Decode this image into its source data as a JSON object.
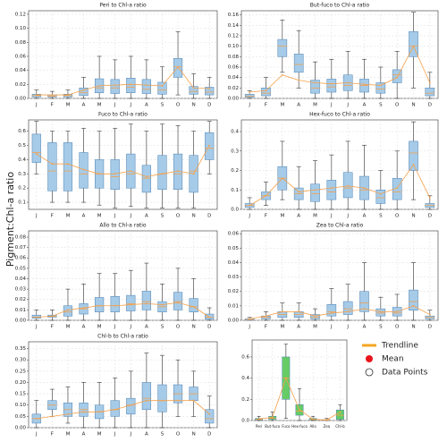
{
  "ylabel": "Pigment:Chl-a ratio",
  "chart_data": [
    {
      "type": "box",
      "title": "Peri to Chl-a ratio",
      "categories": [
        "J",
        "F",
        "M",
        "A",
        "M",
        "J",
        "J",
        "A",
        "S",
        "O",
        "N",
        "D"
      ],
      "whislo": [
        0,
        0,
        0,
        0,
        0,
        0,
        0,
        0,
        0,
        0.005,
        0,
        0
      ],
      "q1": [
        0.002,
        0.002,
        0.002,
        0.004,
        0.008,
        0.007,
        0.008,
        0.007,
        0.006,
        0.03,
        0.006,
        0.005
      ],
      "median": [
        0.004,
        0.003,
        0.004,
        0.008,
        0.015,
        0.015,
        0.016,
        0.013,
        0.012,
        0.045,
        0.01,
        0.009
      ],
      "q3": [
        0.006,
        0.005,
        0.006,
        0.015,
        0.028,
        0.027,
        0.029,
        0.027,
        0.023,
        0.057,
        0.017,
        0.016
      ],
      "whishi": [
        0.012,
        0.01,
        0.012,
        0.03,
        0.06,
        0.055,
        0.06,
        0.055,
        0.045,
        0.095,
        0.035,
        0.03
      ],
      "mean": [
        0.005,
        0.005,
        0.005,
        0.012,
        0.018,
        0.019,
        0.02,
        0.019,
        0.018,
        0.045,
        0.015,
        0.014
      ],
      "ylim": [
        0,
        0.125
      ],
      "yticks": [
        {
          "value": 0,
          "label": "0.00"
        },
        0.02,
        0.04,
        0.06,
        0.08,
        {
          "value": 0.1,
          "label": "0.10"
        },
        0.12
      ],
      "color": "#a6cbe8",
      "trend_color": "#f5a04a",
      "grid": true
    },
    {
      "type": "box",
      "title": "But-fuco to Chl-a ratio",
      "categories": [
        "J",
        "F",
        "M",
        "A",
        "M",
        "J",
        "J",
        "A",
        "S",
        "O",
        "N",
        "D"
      ],
      "whislo": [
        0,
        0,
        0.05,
        0.02,
        0,
        0,
        0,
        0,
        0,
        0,
        0.02,
        0
      ],
      "q1": [
        0.002,
        0.005,
        0.08,
        0.05,
        0.01,
        0.012,
        0.015,
        0.012,
        0.01,
        0.03,
        0.08,
        0.005
      ],
      "median": [
        0.004,
        0.01,
        0.1,
        0.065,
        0.02,
        0.022,
        0.025,
        0.025,
        0.018,
        0.045,
        0.1,
        0.01
      ],
      "q3": [
        0.008,
        0.02,
        0.113,
        0.085,
        0.035,
        0.037,
        0.045,
        0.037,
        0.03,
        0.055,
        0.128,
        0.02
      ],
      "whishi": [
        0.015,
        0.04,
        0.15,
        0.13,
        0.07,
        0.075,
        0.09,
        0.075,
        0.06,
        0.09,
        0.165,
        0.05
      ],
      "mean": [
        0.012,
        0.015,
        0.045,
        0.035,
        0.03,
        0.028,
        0.03,
        0.027,
        0.025,
        0.04,
        0.1,
        0.03
      ],
      "ylim": [
        0,
        0.168
      ],
      "yticks": [
        {
          "value": 0,
          "label": "0.00"
        },
        0.02,
        0.04,
        0.06,
        0.08,
        {
          "value": 0.1,
          "label": "0.10"
        },
        0.12,
        0.14,
        0.16
      ],
      "color": "#a6cbe8",
      "trend_color": "#f5a04a",
      "grid": true
    },
    {
      "type": "box",
      "title": "Fuco to Chl-a ratio",
      "categories": [
        "J",
        "F",
        "M",
        "A",
        "M",
        "J",
        "J",
        "A",
        "S",
        "O",
        "N",
        "D"
      ],
      "whislo": [
        0.3,
        0.1,
        0.1,
        0.1,
        0.08,
        0.06,
        0.07,
        0.06,
        0.06,
        0.06,
        0.06,
        0.3
      ],
      "q1": [
        0.38,
        0.18,
        0.18,
        0.2,
        0.2,
        0.19,
        0.2,
        0.17,
        0.19,
        0.19,
        0.17,
        0.4
      ],
      "median": [
        0.45,
        0.32,
        0.32,
        0.3,
        0.3,
        0.28,
        0.3,
        0.27,
        0.3,
        0.3,
        0.32,
        0.48
      ],
      "q3": [
        0.58,
        0.52,
        0.52,
        0.45,
        0.4,
        0.4,
        0.44,
        0.36,
        0.43,
        0.44,
        0.43,
        0.59
      ],
      "whishi": [
        0.67,
        0.6,
        0.6,
        0.62,
        0.6,
        0.62,
        0.65,
        0.6,
        0.65,
        0.64,
        0.6,
        0.67
      ],
      "mean": [
        0.44,
        0.37,
        0.37,
        0.33,
        0.3,
        0.3,
        0.32,
        0.28,
        0.3,
        0.32,
        0.3,
        0.5
      ],
      "ylim": [
        0.05,
        0.68
      ],
      "yticks": [
        0.1,
        0.2,
        0.3,
        0.4,
        0.5,
        0.6
      ],
      "color": "#a6cbe8",
      "trend_color": "#f5a04a",
      "grid": true
    },
    {
      "type": "box",
      "title": "Hex-fuco to Chl-a ratio",
      "categories": [
        "J",
        "F",
        "M",
        "A",
        "M",
        "J",
        "J",
        "A",
        "S",
        "O",
        "N",
        "D"
      ],
      "whislo": [
        0,
        0.02,
        0.05,
        0,
        0,
        0,
        0,
        0,
        0,
        0,
        0.05,
        0
      ],
      "q1": [
        0.01,
        0.05,
        0.1,
        0.05,
        0.04,
        0.05,
        0.06,
        0.05,
        0.03,
        0.05,
        0.2,
        0.01
      ],
      "median": [
        0.02,
        0.07,
        0.16,
        0.08,
        0.08,
        0.09,
        0.11,
        0.1,
        0.06,
        0.09,
        0.29,
        0.02
      ],
      "q3": [
        0.03,
        0.09,
        0.22,
        0.11,
        0.13,
        0.15,
        0.19,
        0.17,
        0.1,
        0.16,
        0.35,
        0.03
      ],
      "whishi": [
        0.06,
        0.14,
        0.35,
        0.22,
        0.25,
        0.28,
        0.35,
        0.33,
        0.2,
        0.3,
        0.45,
        0.07
      ],
      "mean": [
        0.02,
        0.07,
        0.16,
        0.09,
        0.1,
        0.11,
        0.12,
        0.11,
        0.08,
        0.11,
        0.23,
        0.06
      ],
      "ylim": [
        0,
        0.46
      ],
      "yticks": [
        {
          "value": 0,
          "label": "0.0"
        },
        0.1,
        0.2,
        0.3,
        0.4
      ],
      "color": "#a6cbe8",
      "trend_color": "#f5a04a",
      "grid": true
    },
    {
      "type": "box",
      "title": "Allo to Chl-a ratio",
      "categories": [
        "J",
        "F",
        "M",
        "A",
        "M",
        "J",
        "J",
        "A",
        "S",
        "O",
        "N",
        "D"
      ],
      "whislo": [
        0,
        0,
        0,
        0,
        0,
        0,
        0,
        0,
        0,
        0,
        0,
        0
      ],
      "q1": [
        0.002,
        0.003,
        0.004,
        0.006,
        0.008,
        0.008,
        0.009,
        0.01,
        0.008,
        0.01,
        0.008,
        0.001
      ],
      "median": [
        0.003,
        0.004,
        0.008,
        0.011,
        0.014,
        0.014,
        0.016,
        0.018,
        0.013,
        0.018,
        0.013,
        0.003
      ],
      "q3": [
        0.005,
        0.005,
        0.014,
        0.016,
        0.022,
        0.023,
        0.024,
        0.028,
        0.018,
        0.027,
        0.021,
        0.006
      ],
      "whishi": [
        0.01,
        0.01,
        0.03,
        0.035,
        0.045,
        0.045,
        0.048,
        0.055,
        0.035,
        0.05,
        0.04,
        0.012
      ],
      "mean": [
        0.003,
        0.004,
        0.01,
        0.012,
        0.014,
        0.014,
        0.015,
        0.016,
        0.015,
        0.017,
        0.013,
        0.003
      ],
      "ylim": [
        0,
        0.086
      ],
      "yticks": [
        {
          "value": 0,
          "label": "0.00"
        },
        0.01,
        0.02,
        0.03,
        0.04,
        0.05,
        0.06,
        0.07,
        0.08
      ],
      "color": "#a6cbe8",
      "trend_color": "#f5a04a",
      "grid": true
    },
    {
      "type": "box",
      "title": "Zea to Chl-a ratio",
      "categories": [
        "J",
        "F",
        "M",
        "A",
        "M",
        "J",
        "J",
        "A",
        "S",
        "O",
        "N",
        "D"
      ],
      "whislo": [
        0,
        0,
        0,
        0,
        0,
        0,
        0,
        0,
        0,
        0,
        0,
        0
      ],
      "q1": [
        0,
        0.001,
        0.002,
        0.002,
        0.001,
        0.003,
        0.004,
        0.006,
        0.003,
        0.003,
        0.007,
        0.001
      ],
      "median": [
        0.0005,
        0.002,
        0.004,
        0.004,
        0.002,
        0.006,
        0.008,
        0.012,
        0.005,
        0.005,
        0.013,
        0.002
      ],
      "q3": [
        0.001,
        0.003,
        0.006,
        0.006,
        0.004,
        0.011,
        0.013,
        0.02,
        0.008,
        0.009,
        0.021,
        0.003
      ],
      "whishi": [
        0.002,
        0.006,
        0.012,
        0.012,
        0.008,
        0.022,
        0.025,
        0.04,
        0.016,
        0.018,
        0.04,
        0.007
      ],
      "mean": [
        0.001,
        0.003,
        0.006,
        0.006,
        0.003,
        0.005,
        0.006,
        0.008,
        0.006,
        0.006,
        0.01,
        0.004
      ],
      "ylim": [
        0,
        0.062
      ],
      "yticks": [
        {
          "value": 0,
          "label": "0.00"
        },
        0.01,
        0.02,
        0.03,
        0.04,
        0.05,
        0.06
      ],
      "color": "#a6cbe8",
      "trend_color": "#f5a04a",
      "grid": true
    },
    {
      "type": "box",
      "title": "Chl-b to Chl-a ratio",
      "categories": [
        "J",
        "F",
        "M",
        "A",
        "M",
        "J",
        "J",
        "A",
        "S",
        "O",
        "N",
        "D"
      ],
      "whislo": [
        0,
        0.05,
        0.02,
        0,
        0,
        0,
        0,
        0,
        0,
        0.05,
        0.05,
        0
      ],
      "q1": [
        0.02,
        0.08,
        0.05,
        0.05,
        0.04,
        0.05,
        0.06,
        0.08,
        0.07,
        0.11,
        0.12,
        0.02
      ],
      "median": [
        0.04,
        0.1,
        0.08,
        0.08,
        0.07,
        0.08,
        0.1,
        0.13,
        0.12,
        0.15,
        0.15,
        0.04
      ],
      "q3": [
        0.06,
        0.12,
        0.11,
        0.11,
        0.1,
        0.12,
        0.13,
        0.2,
        0.19,
        0.19,
        0.18,
        0.08
      ],
      "whishi": [
        0.12,
        0.17,
        0.18,
        0.2,
        0.2,
        0.22,
        0.25,
        0.33,
        0.32,
        0.3,
        0.25,
        0.14
      ],
      "mean": [
        0.04,
        0.05,
        0.06,
        0.07,
        0.07,
        0.08,
        0.1,
        0.12,
        0.12,
        0.12,
        0.12,
        0.06
      ],
      "ylim": [
        0,
        0.38
      ],
      "yticks": [
        {
          "value": 0,
          "label": "0.00"
        },
        0.05,
        {
          "value": 0.1,
          "label": "0.10"
        },
        0.15,
        {
          "value": 0.2,
          "label": "0.20"
        },
        0.25,
        {
          "value": 0.3,
          "label": "0.30"
        },
        0.35
      ],
      "color": "#a6cbe8",
      "trend_color": "#f5a04a",
      "grid": true
    },
    {
      "type": "box",
      "categories": [
        "Peri",
        "But-fuco",
        "Fuco",
        "Hex-fuco",
        "Allo",
        "Zea",
        "Chl-b"
      ],
      "whislo": [
        0,
        0,
        0.02,
        0,
        0,
        0,
        0
      ],
      "q1": [
        0.005,
        0.01,
        0.2,
        0.05,
        0.005,
        0.002,
        0.01
      ],
      "median": [
        0.01,
        0.02,
        0.4,
        0.09,
        0.01,
        0.004,
        0.05
      ],
      "q3": [
        0.02,
        0.04,
        0.6,
        0.15,
        0.02,
        0.008,
        0.1
      ],
      "whishi": [
        0.04,
        0.08,
        0.72,
        0.3,
        0.04,
        0.02,
        0.15
      ],
      "mean": [
        0.015,
        0.03,
        0.4,
        0.1,
        0.012,
        0.005,
        0.08
      ],
      "ylim": [
        0,
        0.76
      ],
      "yticks": [
        {
          "value": 0,
          "label": "0.0"
        },
        0.2,
        0.4,
        0.6
      ],
      "color": "#66cc66",
      "trend_color": "#f5a04a",
      "grid": true,
      "legend": [
        "Trendline",
        "Mean",
        "Data Points"
      ],
      "legend_colors": [
        "#f5a623",
        "#e8141c",
        "#ffffff"
      ]
    }
  ]
}
